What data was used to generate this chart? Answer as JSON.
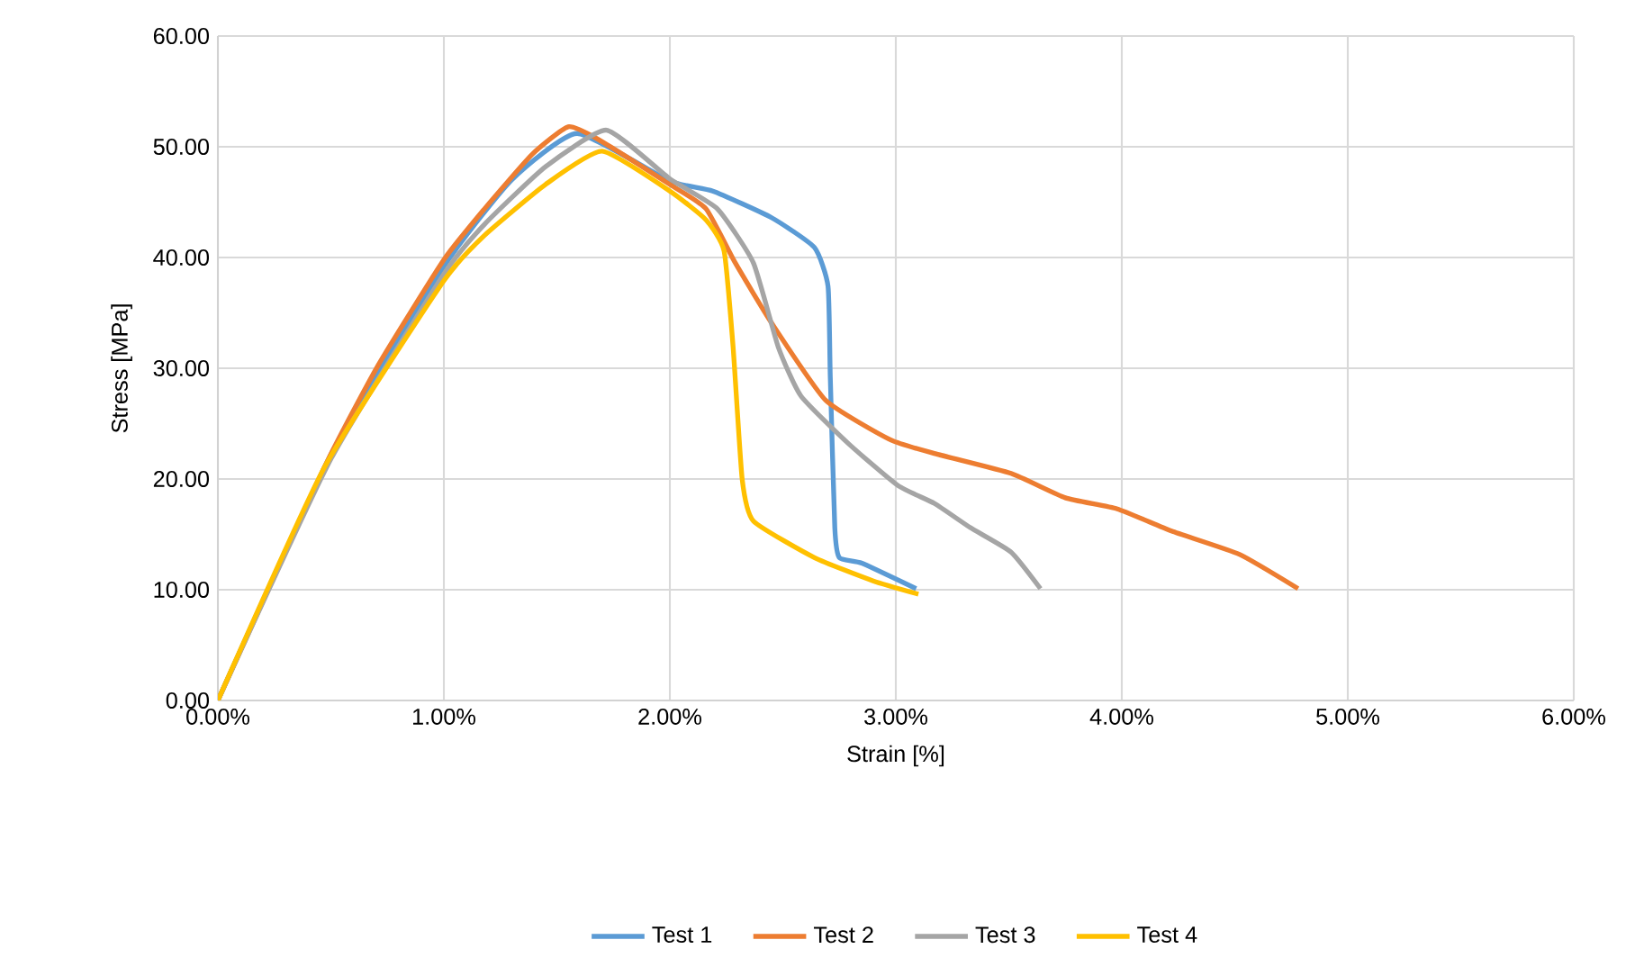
{
  "chart_data": {
    "type": "line",
    "xlabel": "Strain [%]",
    "ylabel": "Stress [MPa]",
    "xlim": [
      0,
      6
    ],
    "ylim": [
      0,
      60
    ],
    "xticks": [
      {
        "value": 0,
        "label": "0.00%"
      },
      {
        "value": 1,
        "label": "1.00%"
      },
      {
        "value": 2,
        "label": "2.00%"
      },
      {
        "value": 3,
        "label": "3.00%"
      },
      {
        "value": 4,
        "label": "4.00%"
      },
      {
        "value": 5,
        "label": "5.00%"
      },
      {
        "value": 6,
        "label": "6.00%"
      }
    ],
    "yticks": [
      {
        "value": 0,
        "label": "0.00"
      },
      {
        "value": 10,
        "label": "10.00"
      },
      {
        "value": 20,
        "label": "20.00"
      },
      {
        "value": 30,
        "label": "30.00"
      },
      {
        "value": 40,
        "label": "40.00"
      },
      {
        "value": 50,
        "label": "50.00"
      },
      {
        "value": 60,
        "label": "60.00"
      }
    ],
    "grid": true,
    "legend": "bottom",
    "marker": "none",
    "line_style": "solid",
    "series": [
      {
        "name": "Test 1",
        "color": "#5b9bd5",
        "x": [
          0,
          0.5,
          1.0,
          1.3,
          1.59,
          2.0,
          2.19,
          2.45,
          2.64,
          2.7,
          2.71,
          2.73,
          2.75,
          2.85,
          3.09
        ],
        "values": [
          0,
          22.2,
          39.2,
          47.0,
          51.2,
          46.9,
          46.0,
          43.6,
          40.9,
          37.4,
          29.2,
          15.6,
          12.9,
          12.4,
          10.1
        ]
      },
      {
        "name": "Test 2",
        "color": "#ed7d31",
        "x": [
          0,
          0.47,
          0.71,
          1.0,
          1.18,
          1.39,
          1.55,
          1.68,
          2.0,
          2.16,
          2.29,
          2.45,
          2.69,
          2.98,
          3.19,
          3.51,
          3.75,
          3.98,
          4.22,
          4.52,
          4.78
        ],
        "values": [
          0,
          21,
          30.3,
          39.8,
          44.4,
          49.3,
          51.8,
          50.7,
          46.6,
          44.4,
          39.5,
          34.1,
          27.1,
          23.5,
          22.2,
          20.5,
          18.3,
          17.3,
          15.3,
          13.2,
          10.1
        ]
      },
      {
        "name": "Test 3",
        "color": "#a5a5a5",
        "x": [
          0,
          0.5,
          1.0,
          1.18,
          1.45,
          1.72,
          2.0,
          2.21,
          2.37,
          2.48,
          2.58,
          2.79,
          3.01,
          3.17,
          3.33,
          3.51,
          3.64
        ],
        "values": [
          0,
          21.8,
          38.5,
          43.0,
          48.2,
          51.5,
          47.1,
          44.4,
          39.5,
          31.9,
          27.5,
          23.2,
          19.4,
          17.8,
          15.6,
          13.4,
          10.1
        ]
      },
      {
        "name": "Test 4",
        "color": "#ffc000",
        "x": [
          0,
          0.47,
          1.0,
          1.18,
          1.45,
          1.7,
          2.0,
          2.16,
          2.24,
          2.28,
          2.32,
          2.37,
          2.64,
          2.9,
          3.1
        ],
        "values": [
          0,
          21,
          37.9,
          42.0,
          46.6,
          49.6,
          46.0,
          43.4,
          40.6,
          31.9,
          20.0,
          16.2,
          12.9,
          10.8,
          9.6
        ]
      }
    ]
  }
}
